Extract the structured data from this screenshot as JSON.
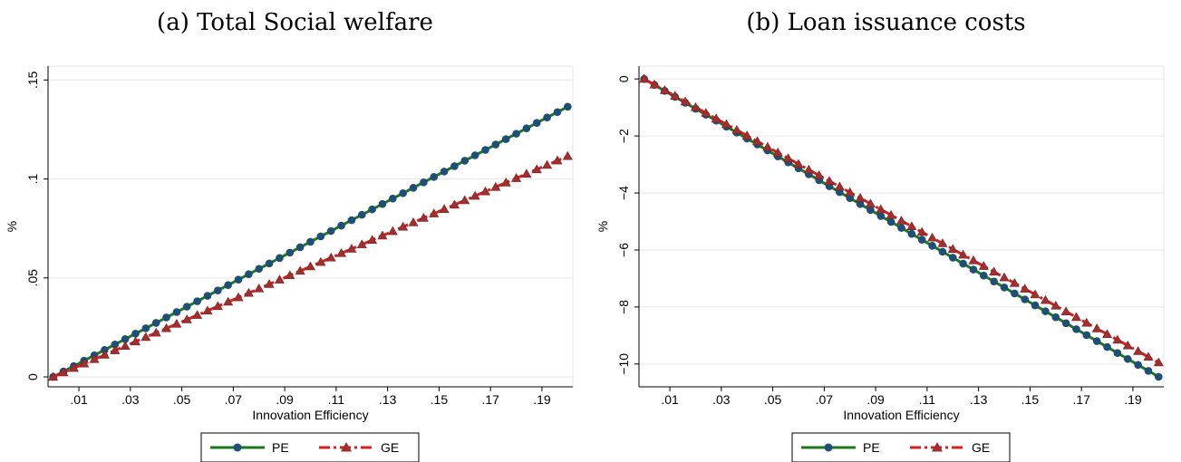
{
  "chart_data": [
    {
      "type": "line",
      "title": "(a) Total Social welfare",
      "xlabel": "Innovation Efficiency",
      "ylabel": "%",
      "xlim": [
        -0.002,
        0.202
      ],
      "ylim": [
        -0.005,
        0.157
      ],
      "x_ticks": [
        0.01,
        0.03,
        0.05,
        0.07,
        0.09,
        0.11,
        0.13,
        0.15,
        0.17,
        0.19
      ],
      "x_tick_labels": [
        ".01",
        ".03",
        ".05",
        ".07",
        ".09",
        ".11",
        ".13",
        ".15",
        ".17",
        ".19"
      ],
      "y_ticks": [
        0,
        0.05,
        0.1,
        0.15
      ],
      "y_tick_labels": [
        "0",
        ".05",
        ".1",
        ".15"
      ],
      "grid": true,
      "legend_position": "bottom",
      "x_start": 0,
      "x_end": 0.2,
      "x_step": 0.004,
      "series": [
        {
          "name": "PE",
          "color": "#1a7a1a",
          "marker": "circle",
          "marker_color": "#1f4e79",
          "line_style": "solid",
          "y_start": 0,
          "y_end": 0.1365
        },
        {
          "name": "GE",
          "color": "#d81e1e",
          "marker": "triangle",
          "marker_color": "#a03030",
          "line_style": "dashdot",
          "y_start": 0,
          "y_end": 0.1115
        }
      ]
    },
    {
      "type": "line",
      "title": "(b) Loan issuance costs",
      "xlabel": "Innovation Efficiency",
      "ylabel": "%",
      "xlim": [
        -0.002,
        0.202
      ],
      "ylim": [
        -10.8,
        0.45
      ],
      "x_ticks": [
        0.01,
        0.03,
        0.05,
        0.07,
        0.09,
        0.11,
        0.13,
        0.15,
        0.17,
        0.19
      ],
      "x_tick_labels": [
        ".01",
        ".03",
        ".05",
        ".07",
        ".09",
        ".11",
        ".13",
        ".15",
        ".17",
        ".19"
      ],
      "y_ticks": [
        0,
        -2,
        -4,
        -6,
        -8,
        -10
      ],
      "y_tick_labels": [
        "0",
        "−2",
        "−4",
        "−6",
        "−8",
        "−10"
      ],
      "grid": true,
      "legend_position": "bottom",
      "x_start": 0,
      "x_end": 0.2,
      "x_step": 0.004,
      "series": [
        {
          "name": "PE",
          "color": "#1a7a1a",
          "marker": "circle",
          "marker_color": "#1f4e79",
          "line_style": "solid",
          "y_start": 0,
          "y_end": -10.45
        },
        {
          "name": "GE",
          "color": "#d81e1e",
          "marker": "triangle",
          "marker_color": "#a03030",
          "line_style": "dashdot",
          "y_start": 0,
          "y_end": -9.95
        }
      ]
    }
  ]
}
